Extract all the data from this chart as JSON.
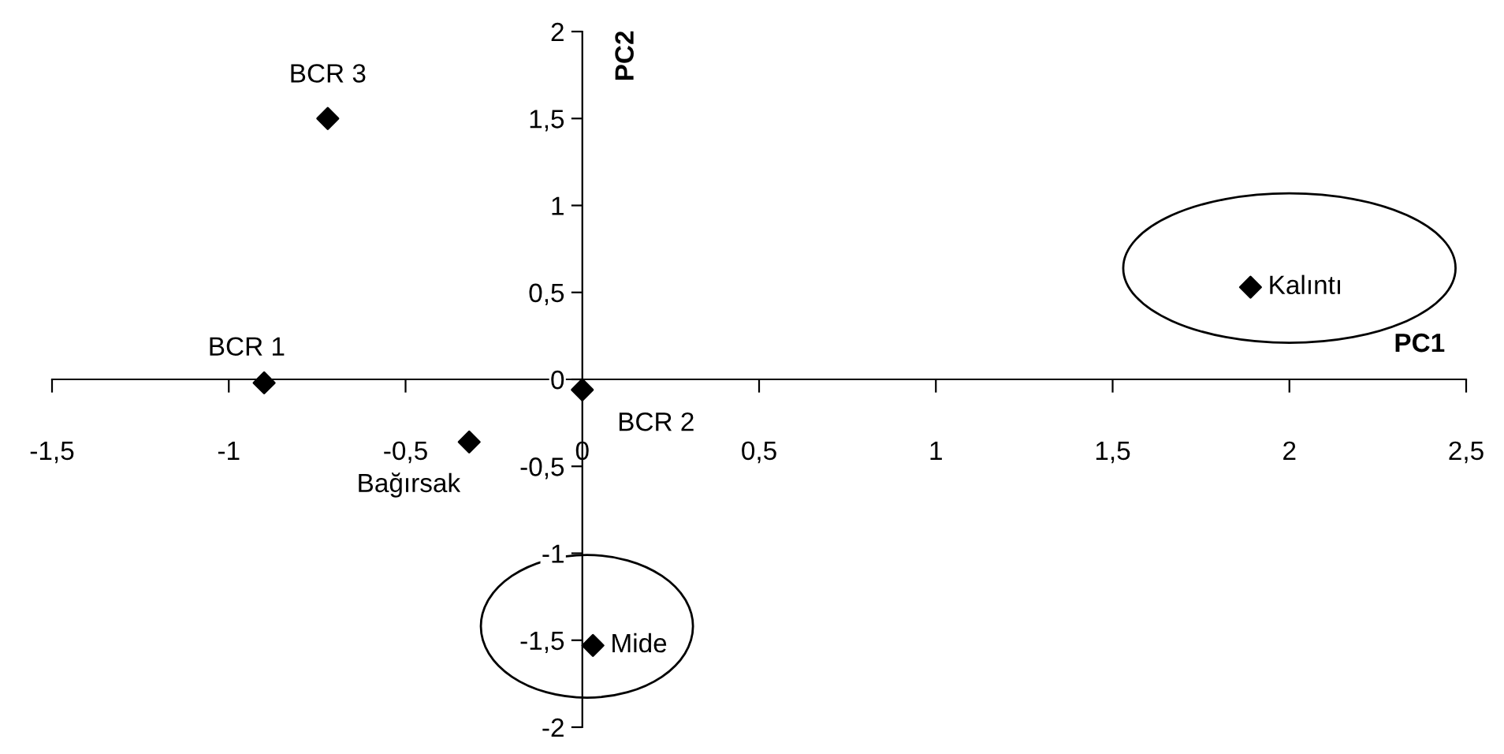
{
  "chart_data": {
    "type": "scatter",
    "xlabel": "PC1",
    "ylabel": "PC2",
    "x": [
      -0.72,
      -0.9,
      0.0,
      -0.32,
      0.03,
      1.89
    ],
    "values": [
      1.5,
      -0.02,
      -0.06,
      -0.36,
      -1.53,
      0.53
    ],
    "color": "#000000",
    "marker": "diamond",
    "grid": false,
    "xlim": [
      -1.5,
      2.5
    ],
    "ylim": [
      -2,
      2
    ],
    "xticks": [
      {
        "value": -1.5,
        "label": "-1,5"
      },
      -1,
      {
        "value": -0.5,
        "label": "-0,5"
      },
      0,
      {
        "value": 0.5,
        "label": "0,5"
      },
      1,
      {
        "value": 1.5,
        "label": "1,5"
      },
      2,
      {
        "value": 2.5,
        "label": "2,5"
      }
    ],
    "yticks": [
      -2,
      {
        "value": -1.5,
        "label": "-1,5"
      },
      -1,
      {
        "value": -0.5,
        "label": "-0,5"
      },
      0,
      {
        "value": 0.5,
        "label": "0,5"
      },
      1,
      {
        "value": 1.5,
        "label": "1,5"
      },
      2
    ],
    "annotations": [
      {
        "text": "BCR 3",
        "x": -0.72,
        "y": 1.5
      },
      {
        "text": "BCR 1",
        "x": -0.9,
        "y": -0.02
      },
      {
        "text": "BCR 2",
        "x": 0.0,
        "y": -0.06
      },
      {
        "text": "Bağırsak",
        "x": -0.32,
        "y": -0.36
      },
      {
        "text": "Mide",
        "x": 0.03,
        "y": -1.53
      },
      {
        "text": "Kalıntı",
        "x": 1.89,
        "y": 0.53
      }
    ]
  }
}
